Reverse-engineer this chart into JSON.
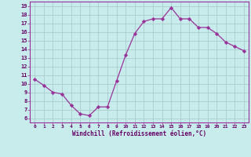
{
  "x": [
    0,
    1,
    2,
    3,
    4,
    5,
    6,
    7,
    8,
    9,
    10,
    11,
    12,
    13,
    14,
    15,
    16,
    17,
    18,
    19,
    20,
    21,
    22,
    23
  ],
  "y": [
    10.5,
    9.8,
    9.0,
    8.8,
    7.5,
    6.5,
    6.3,
    7.3,
    7.3,
    10.3,
    13.3,
    15.8,
    17.2,
    17.5,
    17.5,
    18.8,
    17.5,
    17.5,
    16.5,
    16.5,
    15.8,
    14.8,
    14.3,
    13.8
  ],
  "bg_color": "#c8ecec",
  "line_color": "#993399",
  "marker_color": "#993399",
  "grid_color": "#aacccc",
  "xlabel": "Windchill (Refroidissement éolien,°C)",
  "ylabel_ticks": [
    6,
    7,
    8,
    9,
    10,
    11,
    12,
    13,
    14,
    15,
    16,
    17,
    18,
    19
  ],
  "xlim": [
    -0.5,
    23.5
  ],
  "ylim": [
    5.5,
    19.5
  ],
  "figsize": [
    3.2,
    2.0
  ],
  "dpi": 100
}
